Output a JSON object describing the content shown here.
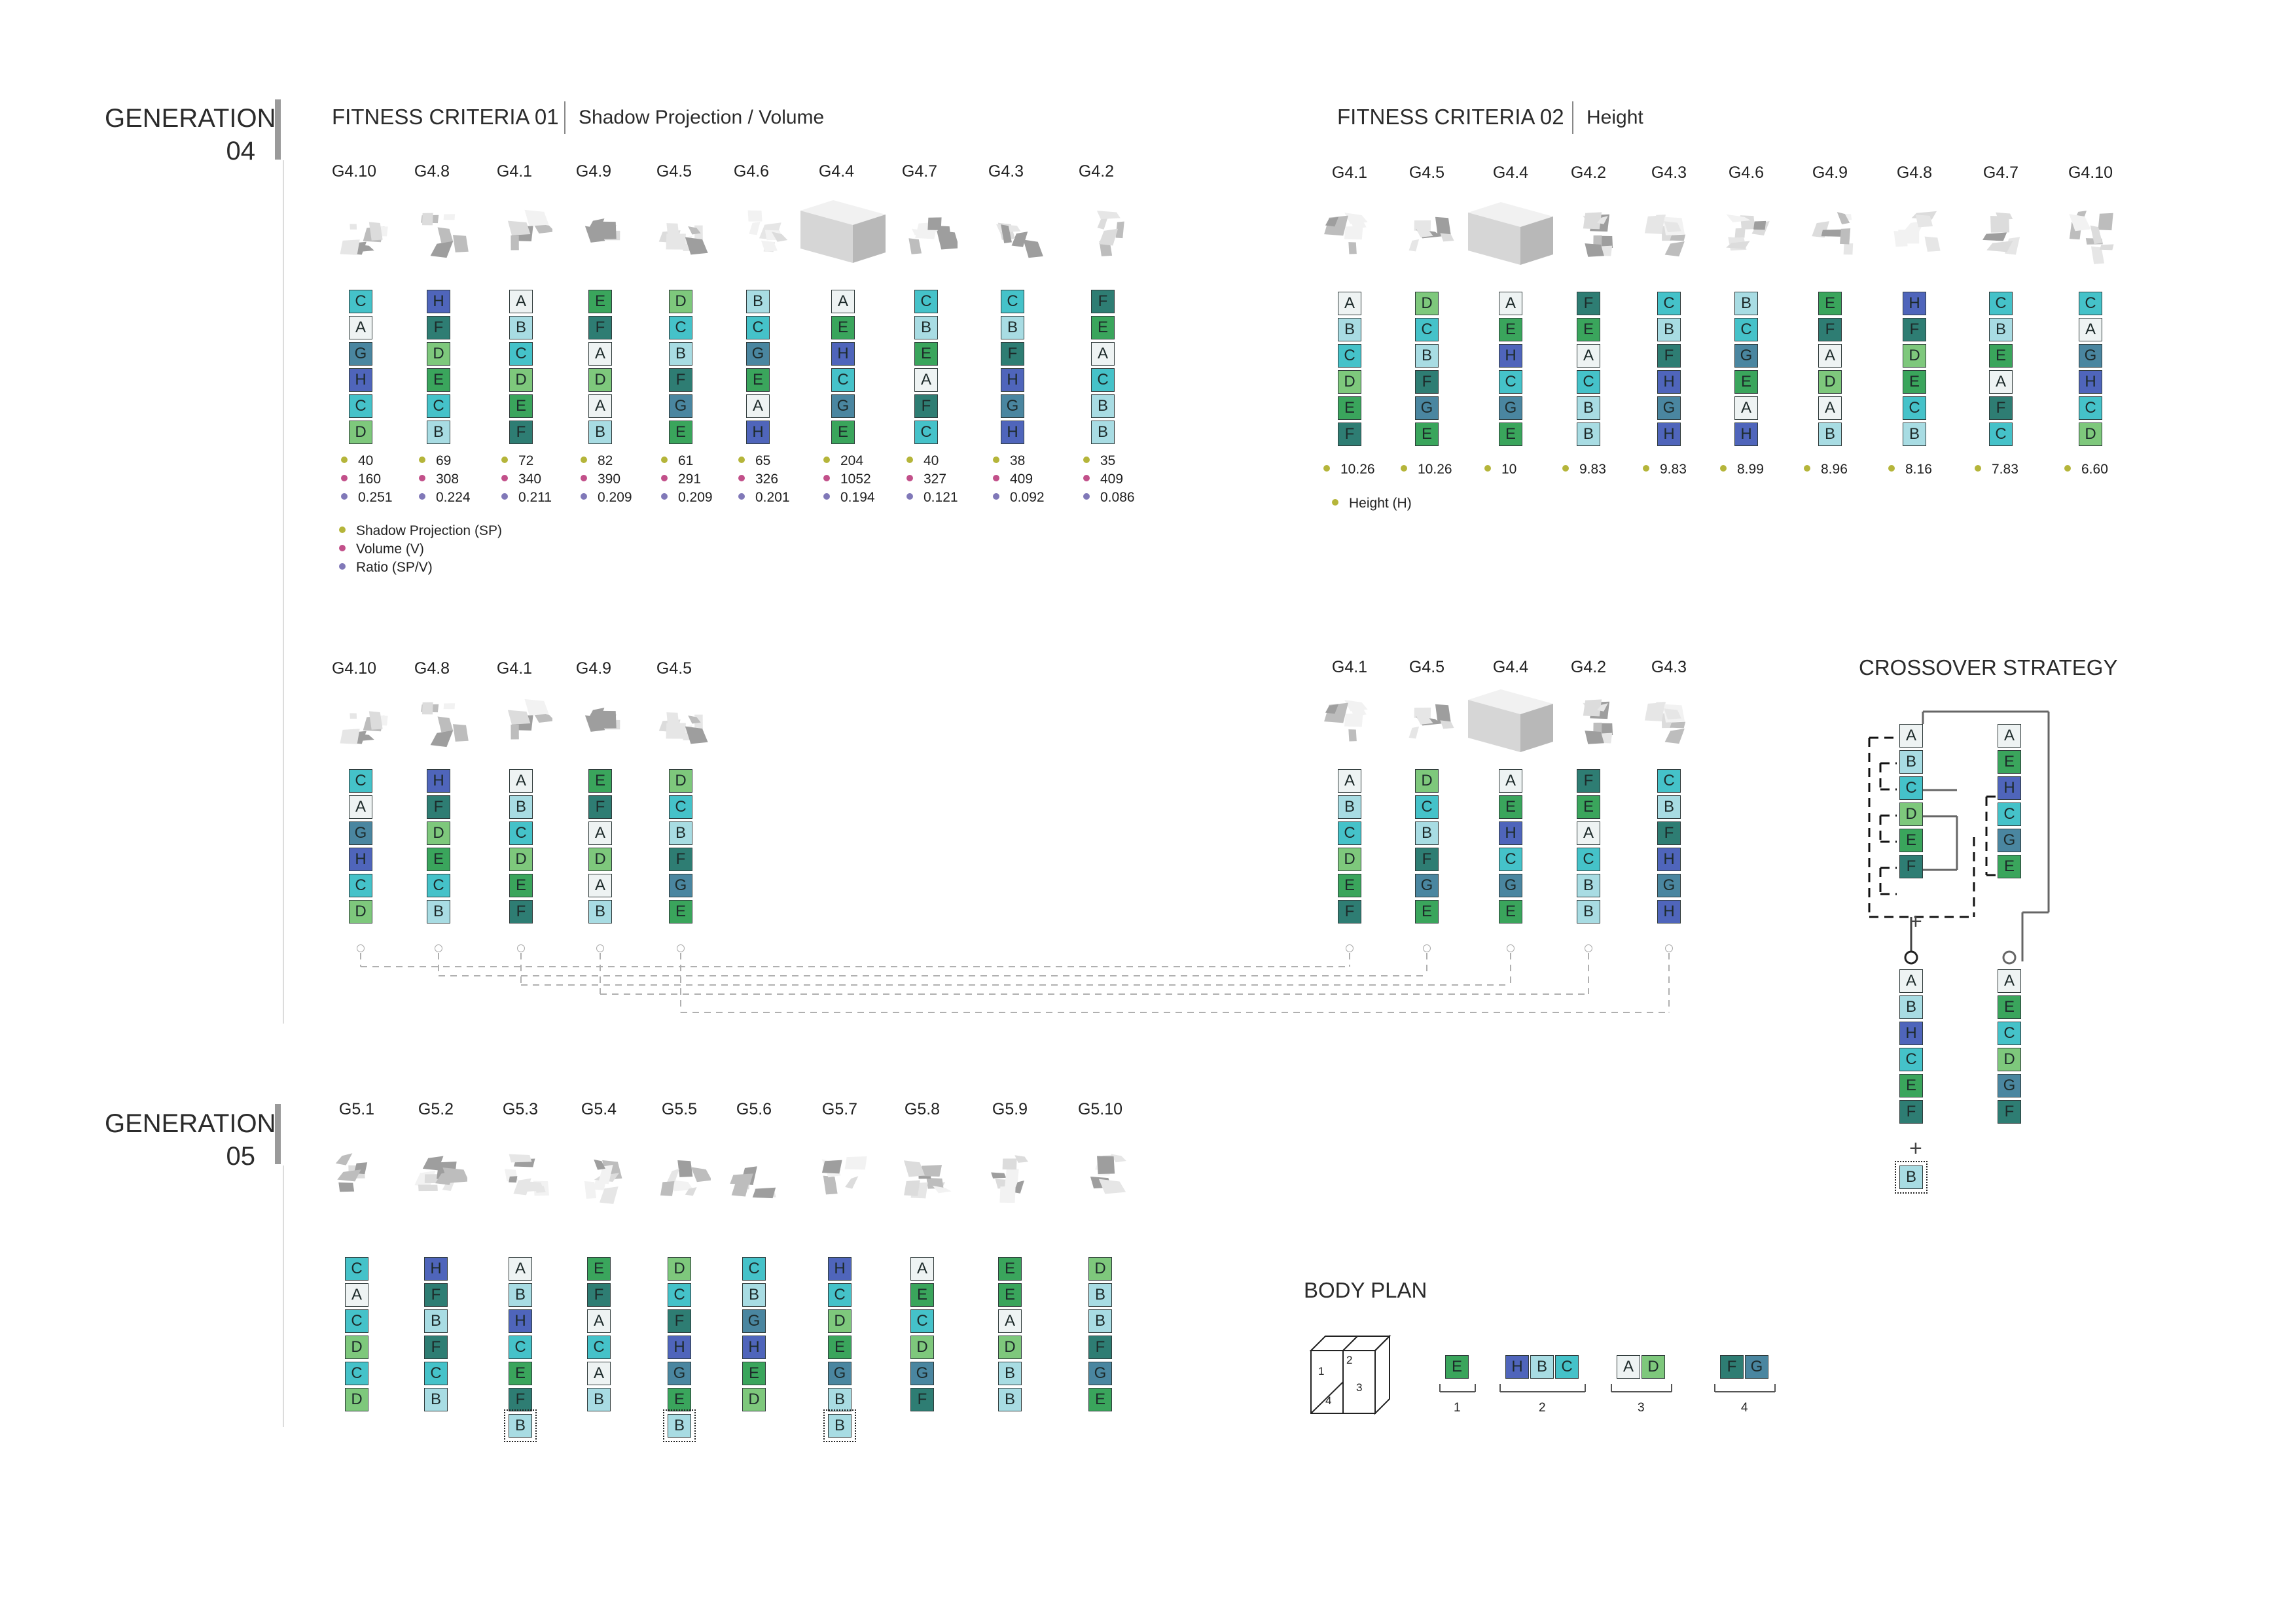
{
  "colors": {
    "A": "#eef3f3",
    "B": "#a8dce3",
    "C": "#45c2c9",
    "D": "#7ec87c",
    "E": "#3aa55c",
    "F": "#2e7d73",
    "G": "#4a86a0",
    "H": "#4f65bb"
  },
  "gen04": {
    "title_line1": "GENERATION",
    "title_line2": "04",
    "criteria1": {
      "title": "FITNESS CRITERIA 01",
      "subtitle": "Shadow Projection / Volume",
      "individuals": [
        {
          "label": "G4.10",
          "genes": [
            "C",
            "A",
            "G",
            "H",
            "C",
            "D"
          ],
          "sp": "40",
          "v": "160",
          "r": "0.251"
        },
        {
          "label": "G4.8",
          "genes": [
            "H",
            "F",
            "D",
            "E",
            "C",
            "B"
          ],
          "sp": "69",
          "v": "308",
          "r": "0.224"
        },
        {
          "label": "G4.1",
          "genes": [
            "A",
            "B",
            "C",
            "D",
            "E",
            "F"
          ],
          "sp": "72",
          "v": "340",
          "r": "0.211"
        },
        {
          "label": "G4.9",
          "genes": [
            "E",
            "F",
            "A",
            "D",
            "A",
            "B"
          ],
          "sp": "82",
          "v": "390",
          "r": "0.209"
        },
        {
          "label": "G4.5",
          "genes": [
            "D",
            "C",
            "B",
            "F",
            "G",
            "E"
          ],
          "sp": "61",
          "v": "291",
          "r": "0.209"
        },
        {
          "label": "G4.6",
          "genes": [
            "B",
            "C",
            "G",
            "E",
            "A",
            "H"
          ],
          "sp": "65",
          "v": "326",
          "r": "0.201"
        },
        {
          "label": "G4.4",
          "genes": [
            "A",
            "E",
            "H",
            "C",
            "G",
            "E"
          ],
          "sp": "204",
          "v": "1052",
          "r": "0.194"
        },
        {
          "label": "G4.7",
          "genes": [
            "C",
            "B",
            "E",
            "A",
            "F",
            "C"
          ],
          "sp": "40",
          "v": "327",
          "r": "0.121"
        },
        {
          "label": "G4.3",
          "genes": [
            "C",
            "B",
            "F",
            "H",
            "G",
            "H"
          ],
          "sp": "38",
          "v": "409",
          "r": "0.092"
        },
        {
          "label": "G4.2",
          "genes": [
            "F",
            "E",
            "A",
            "C",
            "B",
            "B"
          ],
          "sp": "35",
          "v": "409",
          "r": "0.086"
        }
      ],
      "legend": [
        {
          "label": "Shadow Projection (SP)",
          "color": "#b5b53a"
        },
        {
          "label": "Volume (V)",
          "color": "#c2508a"
        },
        {
          "label": "Ratio (SP/V)",
          "color": "#8078b8"
        }
      ],
      "selected": [
        {
          "label": "G4.10",
          "genes": [
            "C",
            "A",
            "G",
            "H",
            "C",
            "D"
          ]
        },
        {
          "label": "G4.8",
          "genes": [
            "H",
            "F",
            "D",
            "E",
            "C",
            "B"
          ]
        },
        {
          "label": "G4.1",
          "genes": [
            "A",
            "B",
            "C",
            "D",
            "E",
            "F"
          ]
        },
        {
          "label": "G4.9",
          "genes": [
            "E",
            "F",
            "A",
            "D",
            "A",
            "B"
          ]
        },
        {
          "label": "G4.5",
          "genes": [
            "D",
            "C",
            "B",
            "F",
            "G",
            "E"
          ]
        }
      ]
    },
    "criteria2": {
      "title": "FITNESS CRITERIA 02",
      "subtitle": "Height",
      "individuals": [
        {
          "label": "G4.1",
          "genes": [
            "A",
            "B",
            "C",
            "D",
            "E",
            "F"
          ],
          "h": "10.26"
        },
        {
          "label": "G4.5",
          "genes": [
            "D",
            "C",
            "B",
            "F",
            "G",
            "E"
          ],
          "h": "10.26"
        },
        {
          "label": "G4.4",
          "genes": [
            "A",
            "E",
            "H",
            "C",
            "G",
            "E"
          ],
          "h": "10"
        },
        {
          "label": "G4.2",
          "genes": [
            "F",
            "E",
            "A",
            "C",
            "B",
            "B"
          ],
          "h": "9.83"
        },
        {
          "label": "G4.3",
          "genes": [
            "C",
            "B",
            "F",
            "H",
            "G",
            "H"
          ],
          "h": "9.83"
        },
        {
          "label": "G4.6",
          "genes": [
            "B",
            "C",
            "G",
            "E",
            "A",
            "H"
          ],
          "h": "8.99"
        },
        {
          "label": "G4.9",
          "genes": [
            "E",
            "F",
            "A",
            "D",
            "A",
            "B"
          ],
          "h": "8.96"
        },
        {
          "label": "G4.8",
          "genes": [
            "H",
            "F",
            "D",
            "E",
            "C",
            "B"
          ],
          "h": "8.16"
        },
        {
          "label": "G4.7",
          "genes": [
            "C",
            "B",
            "E",
            "A",
            "F",
            "C"
          ],
          "h": "7.83"
        },
        {
          "label": "G4.10",
          "genes": [
            "C",
            "A",
            "G",
            "H",
            "C",
            "D"
          ],
          "h": "6.60"
        }
      ],
      "legend": [
        {
          "label": "Height (H)",
          "color": "#b5b53a"
        }
      ],
      "selected": [
        {
          "label": "G4.1",
          "genes": [
            "A",
            "B",
            "C",
            "D",
            "E",
            "F"
          ]
        },
        {
          "label": "G4.5",
          "genes": [
            "D",
            "C",
            "B",
            "F",
            "G",
            "E"
          ]
        },
        {
          "label": "G4.4",
          "genes": [
            "A",
            "E",
            "H",
            "C",
            "G",
            "E"
          ]
        },
        {
          "label": "G4.2",
          "genes": [
            "F",
            "E",
            "A",
            "C",
            "B",
            "B"
          ]
        },
        {
          "label": "G4.3",
          "genes": [
            "C",
            "B",
            "F",
            "H",
            "G",
            "H"
          ]
        }
      ]
    }
  },
  "crossover": {
    "title": "CROSSOVER STRATEGY",
    "parent1": [
      "A",
      "B",
      "C",
      "D",
      "E",
      "F"
    ],
    "parent2": [
      "A",
      "E",
      "H",
      "C",
      "G",
      "E"
    ],
    "plus": "+",
    "child1": [
      "A",
      "B",
      "H",
      "C",
      "E",
      "F"
    ],
    "child1_extra": "B",
    "child2": [
      "A",
      "E",
      "C",
      "D",
      "G",
      "F"
    ]
  },
  "gen05": {
    "title_line1": "GENERATION",
    "title_line2": "05",
    "individuals": [
      {
        "label": "G5.1",
        "genes": [
          "C",
          "A",
          "C",
          "D",
          "C",
          "D"
        ]
      },
      {
        "label": "G5.2",
        "genes": [
          "H",
          "F",
          "B",
          "F",
          "C",
          "B"
        ]
      },
      {
        "label": "G5.3",
        "genes": [
          "A",
          "B",
          "H",
          "C",
          "E",
          "F"
        ],
        "extra": "B"
      },
      {
        "label": "G5.4",
        "genes": [
          "E",
          "F",
          "A",
          "C",
          "A",
          "B"
        ]
      },
      {
        "label": "G5.5",
        "genes": [
          "D",
          "C",
          "F",
          "H",
          "G",
          "E"
        ],
        "extra": "B"
      },
      {
        "label": "G5.6",
        "genes": [
          "C",
          "B",
          "G",
          "H",
          "E",
          "D"
        ]
      },
      {
        "label": "G5.7",
        "genes": [
          "H",
          "C",
          "D",
          "E",
          "G",
          "B"
        ],
        "extra": "B"
      },
      {
        "label": "G5.8",
        "genes": [
          "A",
          "E",
          "C",
          "D",
          "G",
          "F"
        ]
      },
      {
        "label": "G5.9",
        "genes": [
          "E",
          "E",
          "A",
          "D",
          "B",
          "B"
        ]
      },
      {
        "label": "G5.10",
        "genes": [
          "D",
          "B",
          "B",
          "F",
          "G",
          "E"
        ]
      }
    ]
  },
  "body_plan": {
    "title": "BODY PLAN",
    "cube_labels": [
      "1",
      "2",
      "3",
      "4"
    ],
    "groups": [
      {
        "number": "1",
        "genes": [
          "E"
        ]
      },
      {
        "number": "2",
        "genes": [
          "H",
          "B",
          "C"
        ]
      },
      {
        "number": "3",
        "genes": [
          "A",
          "D"
        ]
      },
      {
        "number": "4",
        "genes": [
          "F",
          "G"
        ]
      }
    ]
  }
}
